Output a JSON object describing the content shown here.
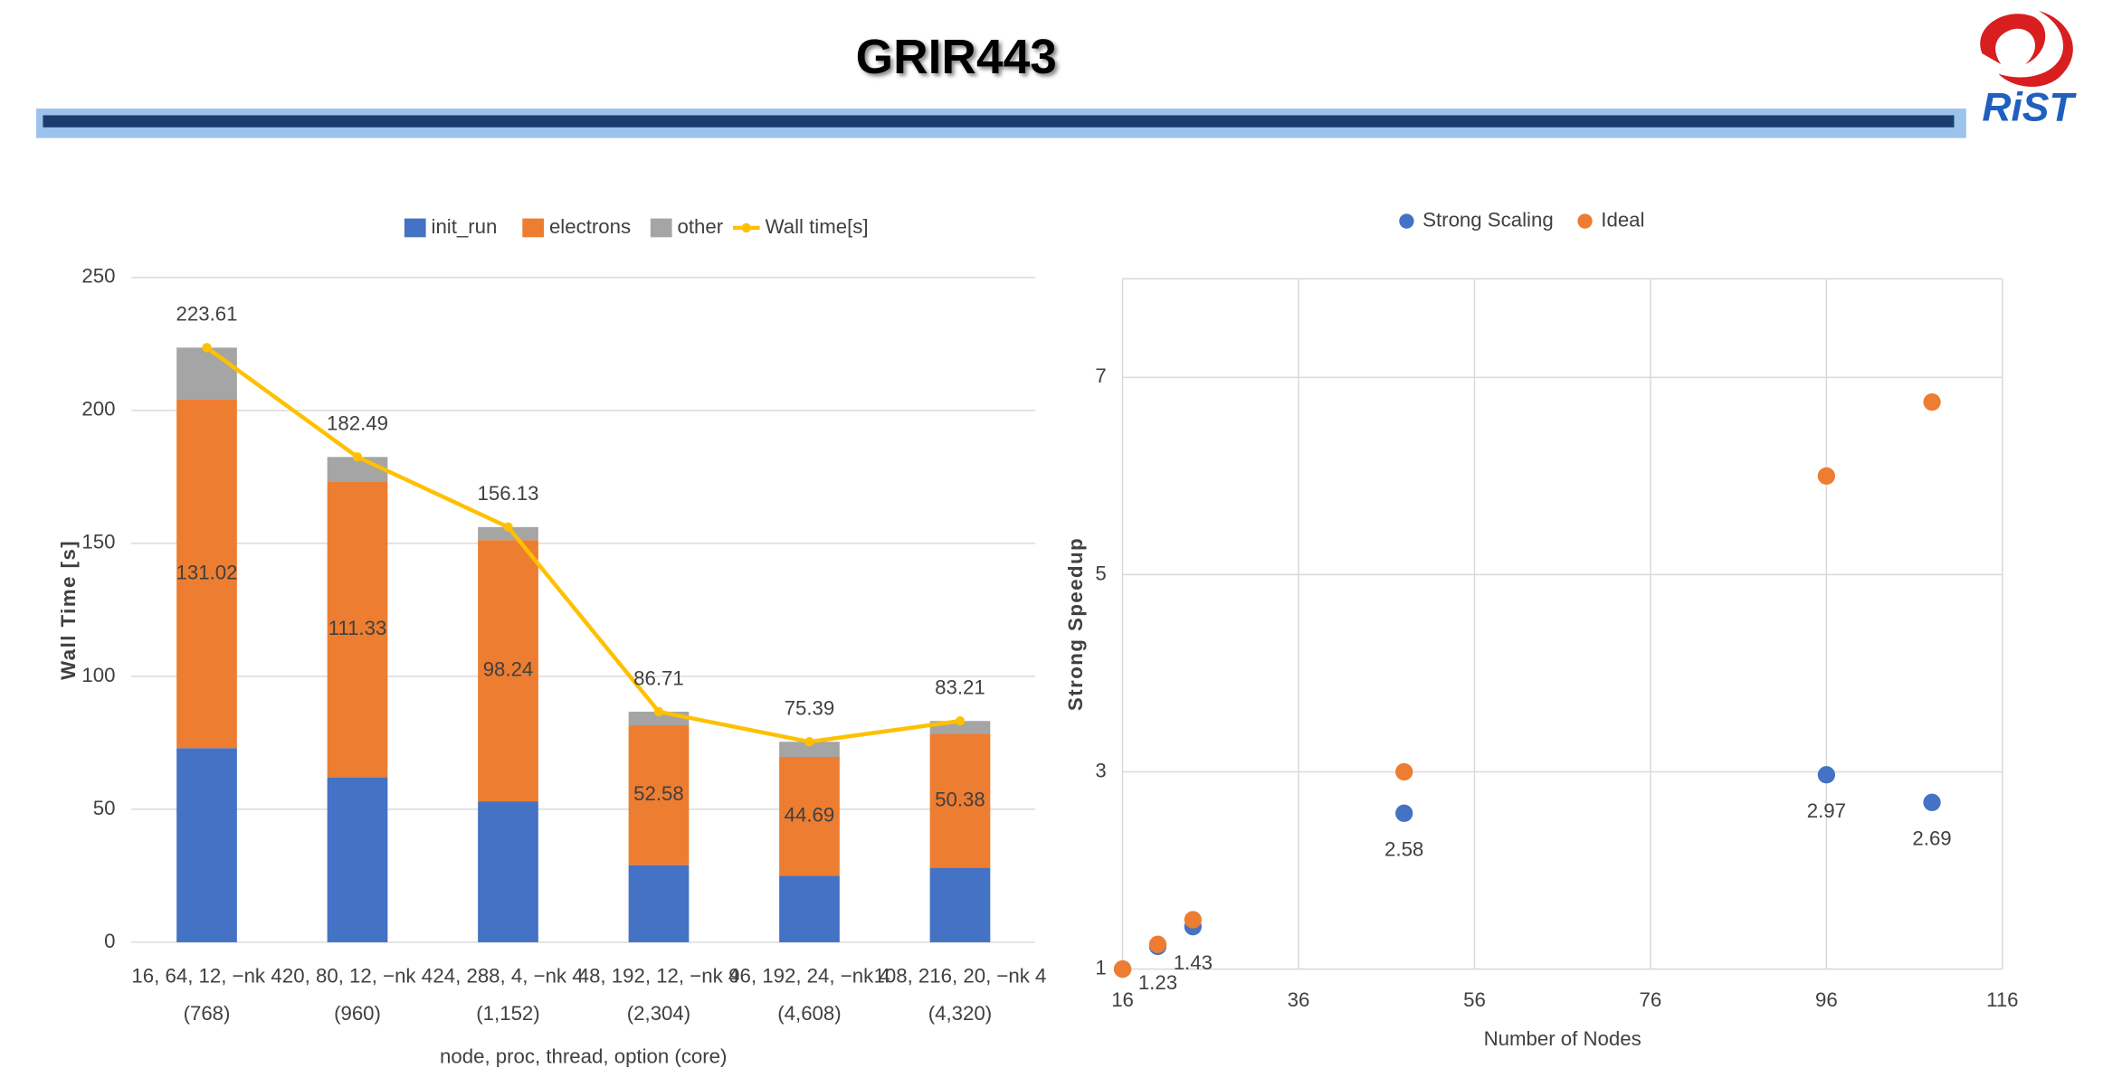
{
  "header": {
    "title": "GRIR443",
    "logo": "RiST"
  },
  "chart_data": [
    {
      "type": "bar",
      "x_label": "node, proc, thread, option (core)",
      "y_label": "Wall Time [s]",
      "categories": [
        [
          "16, 64, 12, −nk 4",
          "(768)"
        ],
        [
          "20, 80, 12, −nk 4",
          "(960)"
        ],
        [
          "24, 288, 4, −nk 4",
          "(1,152)"
        ],
        [
          "48, 192, 12, −nk 4",
          "(2,304)"
        ],
        [
          "96, 192, 24, −nk 4",
          "(4,608)"
        ],
        [
          "108, 216, 20, −nk 4",
          "(4,320)"
        ]
      ],
      "series": [
        {
          "name": "init_run",
          "type": "bar",
          "color": "#4472c4",
          "values": [
            73,
            62,
            53,
            29,
            25,
            28
          ]
        },
        {
          "name": "electrons",
          "type": "bar",
          "color": "#ed7d31",
          "values": [
            131.02,
            111.33,
            98.24,
            52.58,
            44.69,
            50.38
          ],
          "data_labels": true
        },
        {
          "name": "other",
          "type": "bar",
          "color": "#a5a5a5",
          "values": [
            19.59,
            9.16,
            4.89,
            5.13,
            5.7,
            4.83
          ]
        },
        {
          "name": "Wall time[s]",
          "type": "line",
          "color": "#ffc000",
          "values": [
            223.61,
            182.49,
            156.13,
            86.71,
            75.39,
            83.21
          ],
          "data_labels": true
        }
      ],
      "ylim": [
        0,
        250
      ],
      "yticks": [
        0,
        50,
        100,
        150,
        200,
        250
      ],
      "grid": true,
      "legend": "top"
    },
    {
      "type": "scatter",
      "x_label": "Number of Nodes",
      "y_label": "Strong Speedup",
      "series": [
        {
          "name": "Strong Scaling",
          "color": "#4472c4",
          "x": [
            16,
            20,
            24,
            48,
            96,
            108
          ],
          "values": [
            1,
            1.23,
            1.43,
            2.58,
            2.97,
            2.69
          ],
          "value_labels": [
            null,
            "1.23",
            "1.43",
            "2.58",
            "2.97",
            "2.69"
          ]
        },
        {
          "name": "Ideal",
          "color": "#ed7d31",
          "x": [
            16,
            20,
            24,
            48,
            96,
            108
          ],
          "values": [
            1,
            1.25,
            1.5,
            3,
            6,
            6.75
          ]
        }
      ],
      "xlim": [
        16,
        116
      ],
      "xticks": [
        16,
        36,
        56,
        76,
        96,
        116
      ],
      "ylim": [
        1,
        8
      ],
      "yticks": [
        1,
        3,
        5,
        7
      ],
      "grid": true,
      "legend": "top"
    }
  ]
}
